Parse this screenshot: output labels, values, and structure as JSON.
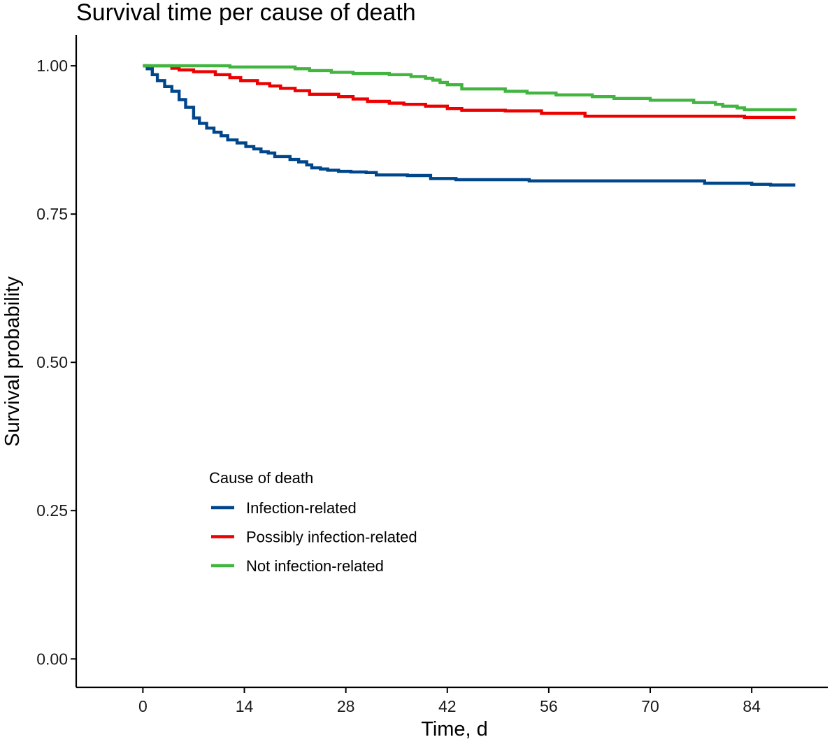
{
  "chart_data": {
    "type": "line",
    "title": "Survival time per cause of death",
    "xlabel": "Time, d",
    "ylabel": "Survival probability",
    "xlim": [
      -9.2,
      94.5
    ],
    "ylim": [
      -0.048,
      1.052
    ],
    "xticks": [
      0,
      14,
      28,
      42,
      56,
      70,
      84
    ],
    "xtick_labels": [
      "0",
      "14",
      "28",
      "42",
      "56",
      "70",
      "84"
    ],
    "yticks": [
      0,
      0.25,
      0.5,
      0.75,
      1
    ],
    "ytick_labels": [
      "0.00",
      "0.25",
      "0.50",
      "0.75",
      "1.00"
    ],
    "grid": false,
    "legend": {
      "title": "Cause of death",
      "placement": "inside-lower-left"
    },
    "series": [
      {
        "name": "Infection-related",
        "color": "#00468B",
        "x": [
          0,
          0.6,
          1.3,
          2.0,
          3.0,
          4.0,
          5.0,
          5.9,
          7.0,
          7.8,
          8.8,
          9.8,
          10.8,
          11.7,
          13.0,
          14.2,
          15.3,
          16.3,
          17.3,
          18.2,
          20.3,
          21.5,
          22.6,
          23.3,
          24.5,
          25.5,
          27.0,
          28.7,
          30.8,
          32.2,
          36.5,
          39.7,
          43.2,
          53.3,
          77.5,
          84.0,
          86.6,
          90.0
        ],
        "y": [
          1.0,
          0.995,
          0.985,
          0.975,
          0.965,
          0.957,
          0.943,
          0.93,
          0.912,
          0.903,
          0.895,
          0.888,
          0.882,
          0.875,
          0.87,
          0.864,
          0.86,
          0.855,
          0.853,
          0.847,
          0.842,
          0.838,
          0.833,
          0.828,
          0.826,
          0.824,
          0.822,
          0.821,
          0.82,
          0.816,
          0.815,
          0.81,
          0.808,
          0.806,
          0.802,
          0.8,
          0.799,
          0.799
        ]
      },
      {
        "name": "Possibly infection-related",
        "color": "#ED0000",
        "x": [
          0,
          4.0,
          5.0,
          7.0,
          10.0,
          12.0,
          13.5,
          15.8,
          17.5,
          19.0,
          21.0,
          23.0,
          27.0,
          29.0,
          31.0,
          34.0,
          36.0,
          39.0,
          42.0,
          44.0,
          50.0,
          55.0,
          61.0,
          83.0,
          90.0
        ],
        "y": [
          1.0,
          0.996,
          0.993,
          0.99,
          0.985,
          0.98,
          0.975,
          0.97,
          0.966,
          0.962,
          0.958,
          0.952,
          0.948,
          0.944,
          0.94,
          0.937,
          0.935,
          0.932,
          0.928,
          0.925,
          0.924,
          0.92,
          0.915,
          0.913,
          0.913
        ]
      },
      {
        "name": "Not infection-related",
        "color": "#42B540",
        "x": [
          0,
          12.0,
          21.0,
          23.0,
          26.0,
          29.0,
          34.0,
          37.0,
          39.0,
          40.0,
          41.0,
          42.0,
          44.0,
          50.0,
          53.0,
          57.0,
          62.0,
          65.0,
          70.0,
          76.0,
          79.0,
          80.0,
          82.0,
          83.0,
          90.0
        ],
        "y": [
          1.0,
          0.998,
          0.995,
          0.992,
          0.989,
          0.987,
          0.985,
          0.982,
          0.979,
          0.976,
          0.972,
          0.968,
          0.961,
          0.957,
          0.954,
          0.951,
          0.948,
          0.945,
          0.942,
          0.938,
          0.935,
          0.932,
          0.929,
          0.926,
          0.924
        ]
      }
    ]
  }
}
